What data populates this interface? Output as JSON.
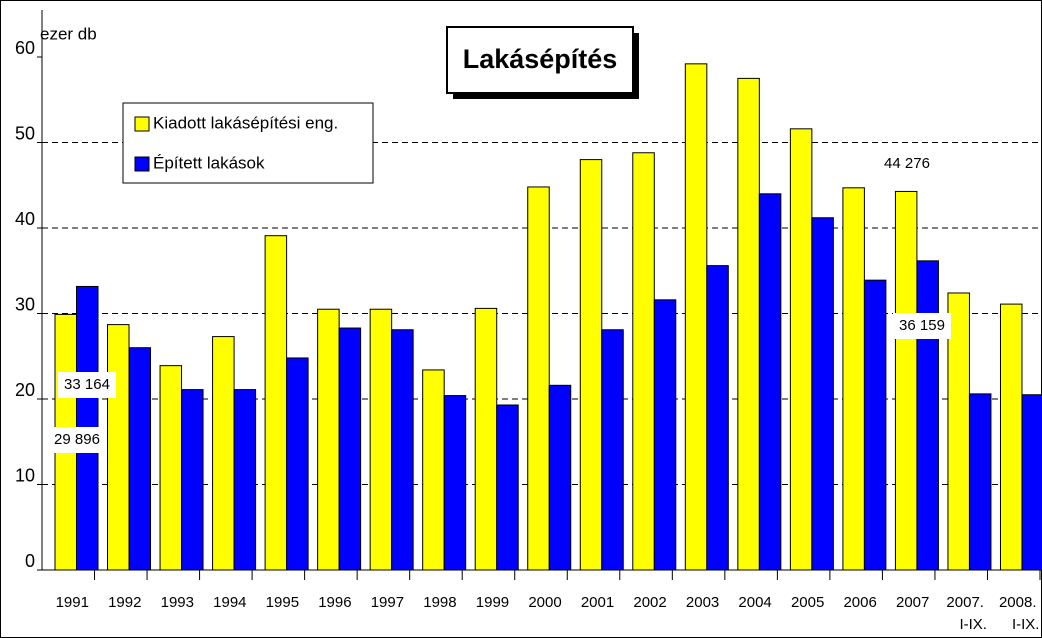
{
  "chart_data": {
    "type": "bar",
    "title": "Lakásépítés",
    "ylabel": "ezer db",
    "categories": [
      "1991",
      "1992",
      "1993",
      "1994",
      "1995",
      "1996",
      "1997",
      "1998",
      "1999",
      "2000",
      "2001",
      "2002",
      "2003",
      "2004",
      "2005",
      "2006",
      "2007",
      "2007.\nI-IX.",
      "2008.\nI-IX."
    ],
    "series": [
      {
        "name": "Kiadott lakásépítési eng.",
        "color": "#ffff00",
        "values": [
          29.896,
          28.7,
          23.9,
          27.3,
          39.1,
          30.5,
          30.5,
          23.4,
          30.6,
          44.8,
          48.0,
          48.8,
          59.2,
          57.5,
          51.6,
          44.7,
          44.276,
          32.4,
          31.1
        ],
        "value_labels": [
          "29 896",
          null,
          null,
          null,
          null,
          null,
          null,
          null,
          null,
          null,
          null,
          null,
          null,
          null,
          null,
          null,
          "44 276",
          null,
          null
        ]
      },
      {
        "name": "Épített lakások",
        "color": "#0000ff",
        "values": [
          33.164,
          26.0,
          21.1,
          21.1,
          24.8,
          28.3,
          28.1,
          20.4,
          19.3,
          21.6,
          28.1,
          31.6,
          35.6,
          44.0,
          41.2,
          33.9,
          36.159,
          20.6,
          20.5
        ],
        "value_labels": [
          "33 164",
          null,
          null,
          null,
          null,
          null,
          null,
          null,
          null,
          null,
          null,
          null,
          null,
          null,
          null,
          null,
          "36 159",
          null,
          null
        ]
      }
    ],
    "ylim": [
      0,
      60
    ],
    "yticks": [
      0,
      10,
      20,
      30,
      40,
      50,
      60
    ],
    "grid": true,
    "legend": "upper left"
  }
}
